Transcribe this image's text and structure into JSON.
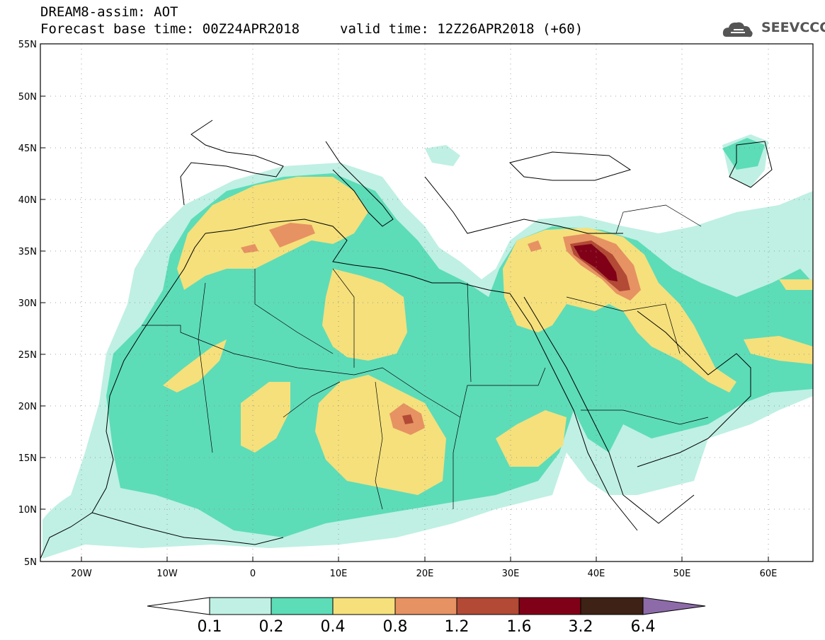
{
  "header": {
    "title": "DREAM8-assim: AOT",
    "base_time": "Forecast base time: 00Z24APR2018",
    "valid_time": "valid time: 12Z26APR2018 (+60)"
  },
  "logo": {
    "text": "SEEVCCC",
    "icon": "cloud-icon"
  },
  "map": {
    "lon_range": [
      -25,
      65
    ],
    "lat_range": [
      5,
      55
    ],
    "lat_labels": [
      "55N",
      "50N",
      "45N",
      "40N",
      "35N",
      "30N",
      "25N",
      "20N",
      "15N",
      "10N",
      "5N"
    ],
    "lon_labels": [
      "20W",
      "10W",
      "0",
      "10E",
      "20E",
      "30E",
      "40E",
      "50E",
      "60E"
    ]
  },
  "legend": {
    "values": [
      "0.1",
      "0.2",
      "0.4",
      "0.8",
      "1.2",
      "1.6",
      "3.2",
      "6.4"
    ],
    "colors": [
      "#ffffff",
      "#bff0e3",
      "#5ddcb8",
      "#f5e07c",
      "#e79262",
      "#b24a36",
      "#800018",
      "#3d2215",
      "#8d6ba8"
    ]
  },
  "colors": {
    "c1": "#bff0e3",
    "c2": "#5ddcb8",
    "c3": "#f5e07c",
    "c4": "#e79262",
    "c5": "#b24a36",
    "c6": "#800018"
  }
}
